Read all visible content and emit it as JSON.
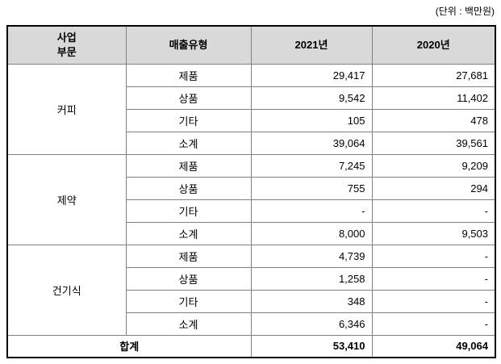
{
  "unit_label": "(단위 : 백만원)",
  "table": {
    "columns": [
      {
        "label_line1": "사업",
        "label_line2": "부문"
      },
      {
        "label": "매출유형"
      },
      {
        "label": "2021년"
      },
      {
        "label": "2020년"
      }
    ],
    "groups": [
      {
        "segment": "커피",
        "rows": [
          {
            "type": "제품",
            "y2021": "29,417",
            "y2020": "27,681"
          },
          {
            "type": "상품",
            "y2021": "9,542",
            "y2020": "11,402"
          },
          {
            "type": "기타",
            "y2021": "105",
            "y2020": "478"
          },
          {
            "type": "소계",
            "y2021": "39,064",
            "y2020": "39,561"
          }
        ]
      },
      {
        "segment": "제약",
        "rows": [
          {
            "type": "제품",
            "y2021": "7,245",
            "y2020": "9,209"
          },
          {
            "type": "상품",
            "y2021": "755",
            "y2020": "294"
          },
          {
            "type": "기타",
            "y2021": "-",
            "y2020": "-"
          },
          {
            "type": "소계",
            "y2021": "8,000",
            "y2020": "9,503"
          }
        ]
      },
      {
        "segment": "건기식",
        "rows": [
          {
            "type": "제품",
            "y2021": "4,739",
            "y2020": "-"
          },
          {
            "type": "상품",
            "y2021": "1,258",
            "y2020": "-"
          },
          {
            "type": "기타",
            "y2021": "348",
            "y2020": "-"
          },
          {
            "type": "소계",
            "y2021": "6,346",
            "y2020": "-"
          }
        ]
      }
    ],
    "total": {
      "label": "합계",
      "y2021": "53,410",
      "y2020": "49,064"
    }
  },
  "colors": {
    "header_bg": "#d9d9d9",
    "border_inner": "#808080",
    "border_outer": "#000000"
  }
}
